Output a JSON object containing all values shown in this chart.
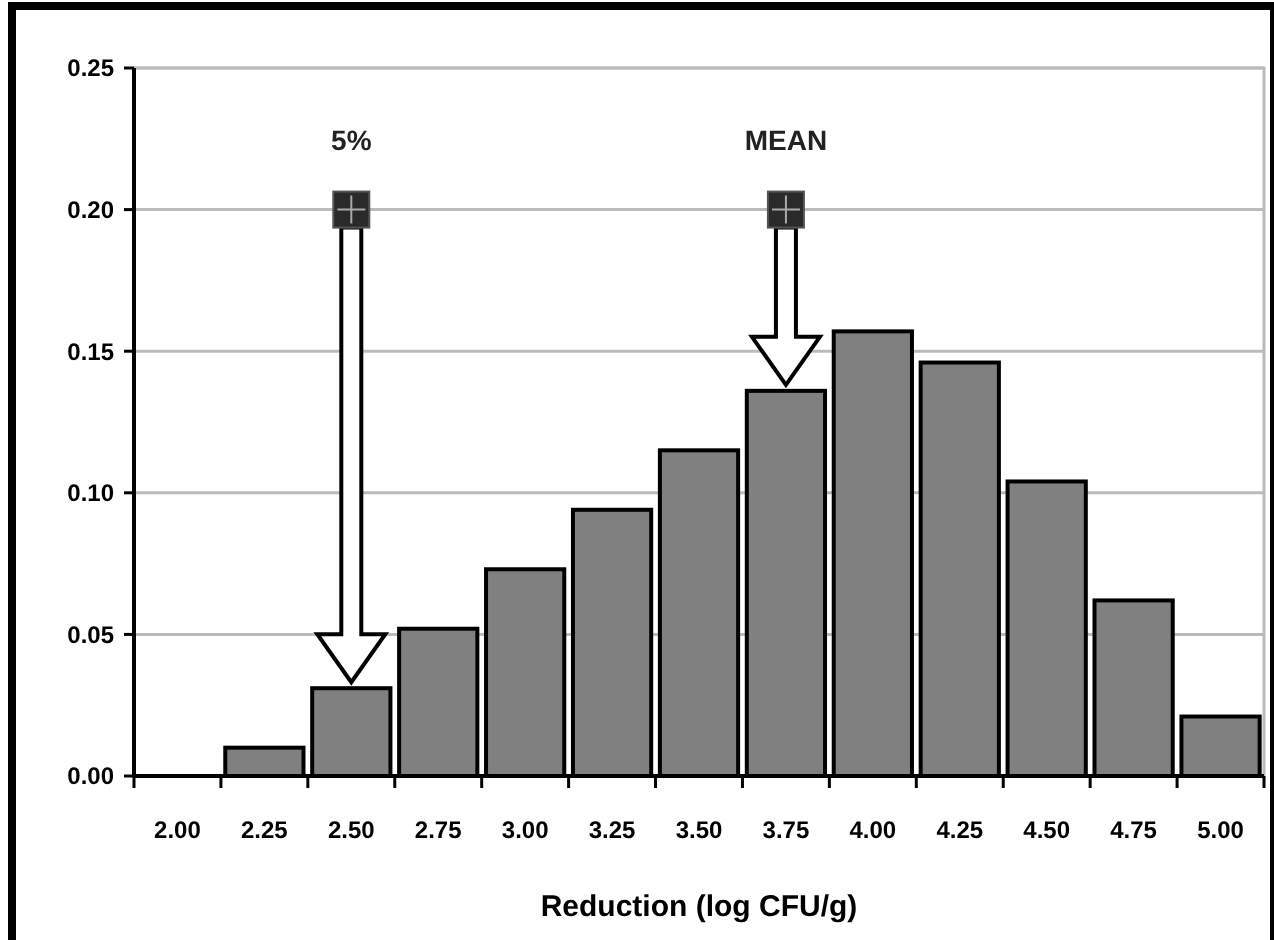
{
  "chart_data": {
    "type": "bar",
    "xlabel": "Reduction (log CFU/g)",
    "categories": [
      "2.00",
      "2.25",
      "2.50",
      "2.75",
      "3.00",
      "3.25",
      "3.50",
      "3.75",
      "4.00",
      "4.25",
      "4.50",
      "4.75",
      "5.00"
    ],
    "series": [
      {
        "color": "#808080",
        "values": [
          0,
          0.01,
          0.031,
          0.052,
          0.073,
          0.094,
          0.115,
          0.136,
          0.157,
          0.146,
          0.104,
          0.062,
          0.021
        ]
      },
      {
        "type": "scatter",
        "color": "#2a2a2a",
        "marker": "square",
        "x": [
          "2.50",
          "3.75"
        ],
        "values": [
          0.2,
          0.2
        ]
      }
    ],
    "annotations": [
      {
        "text": "5%",
        "x": "2.50",
        "y": 0.2
      },
      {
        "text": "MEAN",
        "x": "3.75",
        "y": 0.2
      }
    ],
    "ylim": [
      0,
      0.25
    ],
    "yticks": [
      {
        "value": 0,
        "label": "0.00"
      },
      {
        "value": 0.05,
        "label": "0.05"
      },
      {
        "value": 0.1,
        "label": "0.10"
      },
      {
        "value": 0.15,
        "label": "0.15"
      },
      {
        "value": 0.2,
        "label": "0.20"
      },
      {
        "value": 0.25,
        "label": "0.25"
      }
    ],
    "grid": "y"
  }
}
